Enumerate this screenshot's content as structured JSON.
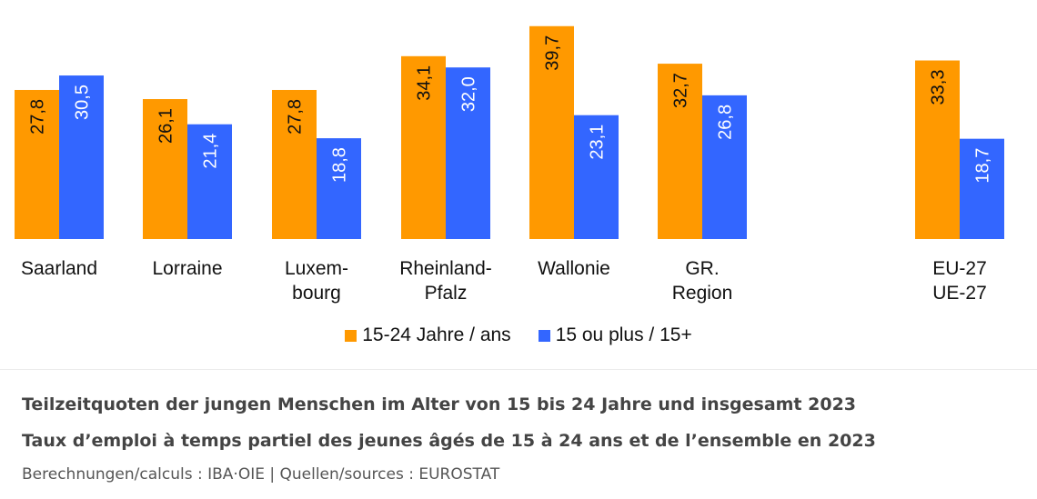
{
  "chart_data": {
    "type": "bar",
    "categories": [
      "Saarland",
      "Lorraine",
      "Luxem-\nbourg",
      "Rheinland-\nPfalz",
      "Wallonie",
      "GR.\nRegion",
      "EU-27\nUE-27"
    ],
    "series": [
      {
        "name": "15-24 Jahre / ans",
        "color": "#ff9900",
        "values": [
          27.8,
          26.1,
          27.8,
          34.1,
          39.7,
          32.7,
          33.3
        ],
        "labels": [
          "27,8",
          "26,1",
          "27,8",
          "34,1",
          "39,7",
          "32,7",
          "33,3"
        ]
      },
      {
        "name": "15 ou plus / 15+",
        "color": "#3366ff",
        "values": [
          30.5,
          21.4,
          18.8,
          32.0,
          23.1,
          26.8,
          18.7
        ],
        "labels": [
          "30,5",
          "21,4",
          "18,8",
          "32,0",
          "23,1",
          "26,8",
          "18,7"
        ]
      }
    ],
    "ylim": [
      0,
      40
    ],
    "grid": false,
    "legend_position": "bottom-center",
    "title": "",
    "xlabel": "",
    "ylabel": ""
  },
  "caption": {
    "line_de": "Teilzeitquoten der jungen Menschen im Alter von 15 bis 24 Jahre und insgesamt 2023",
    "line_fr": "Taux d’emploi à temps partiel des jeunes âgés de 15 à 24 ans et de l’ensemble en 2023",
    "source": "Berechnungen/calculs : IBA·OIE | Quellen/sources : EUROSTAT"
  }
}
